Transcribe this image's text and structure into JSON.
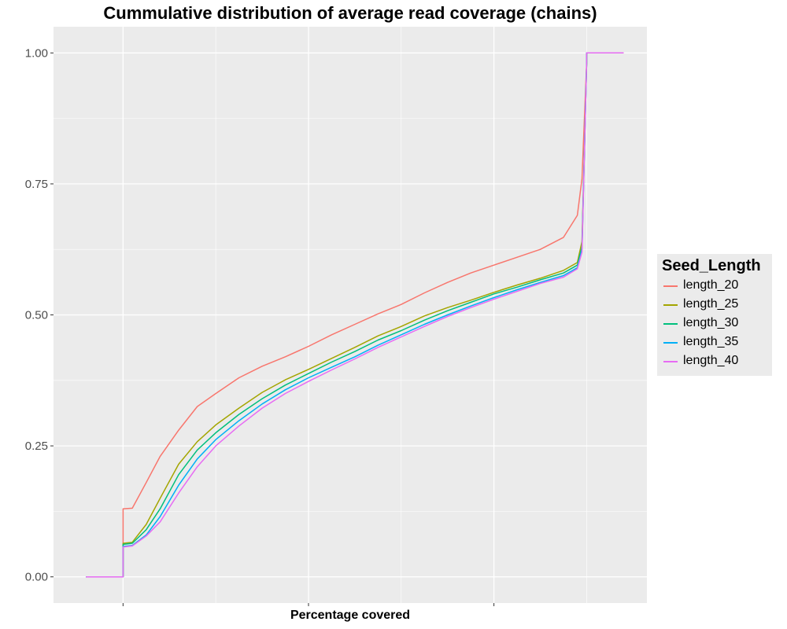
{
  "chart_data": {
    "type": "line",
    "title": "Cummulative distribution of average read coverage (chains)",
    "xlabel": "Percentage covered",
    "ylabel": "",
    "xlim": [
      -0.15,
      1.13
    ],
    "ylim": [
      -0.05,
      1.05
    ],
    "x_major_ticks": [
      0,
      0.4,
      0.8
    ],
    "x_minor_ticks": [
      0.2,
      0.6,
      1.0
    ],
    "x_tick_labels": [],
    "y_ticks": [
      0,
      0.25,
      0.5,
      0.75,
      1
    ],
    "y_tick_labels": [
      "0.00",
      "0.25",
      "0.50",
      "0.75",
      "1.00"
    ],
    "grid": true,
    "legend": {
      "title": "Seed_Length",
      "position": "right"
    },
    "series": [
      {
        "name": "length_20",
        "color": "#F8766D",
        "points": [
          [
            -0.08,
            0
          ],
          [
            0,
            0
          ],
          [
            0,
            0.13
          ],
          [
            0.02,
            0.131
          ],
          [
            0.05,
            0.18
          ],
          [
            0.08,
            0.23
          ],
          [
            0.12,
            0.28
          ],
          [
            0.16,
            0.325
          ],
          [
            0.2,
            0.35
          ],
          [
            0.25,
            0.38
          ],
          [
            0.3,
            0.402
          ],
          [
            0.35,
            0.42
          ],
          [
            0.4,
            0.44
          ],
          [
            0.45,
            0.462
          ],
          [
            0.5,
            0.482
          ],
          [
            0.55,
            0.502
          ],
          [
            0.6,
            0.52
          ],
          [
            0.65,
            0.542
          ],
          [
            0.7,
            0.562
          ],
          [
            0.75,
            0.58
          ],
          [
            0.8,
            0.595
          ],
          [
            0.85,
            0.61
          ],
          [
            0.9,
            0.625
          ],
          [
            0.95,
            0.648
          ],
          [
            0.98,
            0.69
          ],
          [
            0.99,
            0.76
          ],
          [
            1.0,
            0.98
          ],
          [
            1.0,
            1.0
          ],
          [
            1.08,
            1.0
          ]
        ]
      },
      {
        "name": "length_25",
        "color": "#A3A500",
        "points": [
          [
            -0.08,
            0
          ],
          [
            0,
            0
          ],
          [
            0,
            0.064
          ],
          [
            0.02,
            0.066
          ],
          [
            0.05,
            0.1
          ],
          [
            0.08,
            0.15
          ],
          [
            0.12,
            0.215
          ],
          [
            0.16,
            0.258
          ],
          [
            0.2,
            0.29
          ],
          [
            0.25,
            0.322
          ],
          [
            0.3,
            0.352
          ],
          [
            0.35,
            0.376
          ],
          [
            0.4,
            0.396
          ],
          [
            0.45,
            0.417
          ],
          [
            0.5,
            0.438
          ],
          [
            0.55,
            0.46
          ],
          [
            0.6,
            0.478
          ],
          [
            0.65,
            0.498
          ],
          [
            0.7,
            0.514
          ],
          [
            0.75,
            0.528
          ],
          [
            0.8,
            0.543
          ],
          [
            0.85,
            0.557
          ],
          [
            0.9,
            0.57
          ],
          [
            0.95,
            0.585
          ],
          [
            0.98,
            0.6
          ],
          [
            0.99,
            0.64
          ],
          [
            1.0,
            0.98
          ],
          [
            1.0,
            1.0
          ],
          [
            1.08,
            1.0
          ]
        ]
      },
      {
        "name": "length_30",
        "color": "#00BF7D",
        "points": [
          [
            -0.08,
            0
          ],
          [
            0,
            0
          ],
          [
            0,
            0.062
          ],
          [
            0.02,
            0.064
          ],
          [
            0.05,
            0.09
          ],
          [
            0.08,
            0.13
          ],
          [
            0.12,
            0.195
          ],
          [
            0.16,
            0.242
          ],
          [
            0.2,
            0.275
          ],
          [
            0.25,
            0.31
          ],
          [
            0.3,
            0.34
          ],
          [
            0.35,
            0.366
          ],
          [
            0.4,
            0.388
          ],
          [
            0.45,
            0.41
          ],
          [
            0.5,
            0.43
          ],
          [
            0.55,
            0.452
          ],
          [
            0.6,
            0.47
          ],
          [
            0.65,
            0.49
          ],
          [
            0.7,
            0.508
          ],
          [
            0.75,
            0.524
          ],
          [
            0.8,
            0.54
          ],
          [
            0.85,
            0.553
          ],
          [
            0.9,
            0.567
          ],
          [
            0.95,
            0.58
          ],
          [
            0.98,
            0.595
          ],
          [
            0.99,
            0.63
          ],
          [
            1.0,
            0.98
          ],
          [
            1.0,
            1.0
          ],
          [
            1.08,
            1.0
          ]
        ]
      },
      {
        "name": "length_35",
        "color": "#00B0F6",
        "points": [
          [
            -0.08,
            0
          ],
          [
            0,
            0
          ],
          [
            0,
            0.058
          ],
          [
            0.02,
            0.06
          ],
          [
            0.05,
            0.08
          ],
          [
            0.08,
            0.115
          ],
          [
            0.12,
            0.175
          ],
          [
            0.16,
            0.225
          ],
          [
            0.2,
            0.262
          ],
          [
            0.25,
            0.298
          ],
          [
            0.3,
            0.33
          ],
          [
            0.35,
            0.357
          ],
          [
            0.4,
            0.38
          ],
          [
            0.45,
            0.4
          ],
          [
            0.5,
            0.42
          ],
          [
            0.55,
            0.442
          ],
          [
            0.6,
            0.462
          ],
          [
            0.65,
            0.482
          ],
          [
            0.7,
            0.5
          ],
          [
            0.75,
            0.517
          ],
          [
            0.8,
            0.533
          ],
          [
            0.85,
            0.548
          ],
          [
            0.9,
            0.562
          ],
          [
            0.95,
            0.575
          ],
          [
            0.98,
            0.59
          ],
          [
            0.99,
            0.625
          ],
          [
            1.0,
            0.98
          ],
          [
            1.0,
            1.0
          ],
          [
            1.08,
            1.0
          ]
        ]
      },
      {
        "name": "length_40",
        "color": "#E76BF3",
        "points": [
          [
            -0.08,
            0
          ],
          [
            0,
            0
          ],
          [
            0,
            0.057
          ],
          [
            0.02,
            0.059
          ],
          [
            0.05,
            0.078
          ],
          [
            0.08,
            0.105
          ],
          [
            0.12,
            0.16
          ],
          [
            0.16,
            0.21
          ],
          [
            0.2,
            0.25
          ],
          [
            0.25,
            0.288
          ],
          [
            0.3,
            0.322
          ],
          [
            0.35,
            0.35
          ],
          [
            0.4,
            0.373
          ],
          [
            0.45,
            0.395
          ],
          [
            0.5,
            0.416
          ],
          [
            0.55,
            0.438
          ],
          [
            0.6,
            0.458
          ],
          [
            0.65,
            0.478
          ],
          [
            0.7,
            0.497
          ],
          [
            0.75,
            0.514
          ],
          [
            0.8,
            0.53
          ],
          [
            0.85,
            0.545
          ],
          [
            0.9,
            0.56
          ],
          [
            0.95,
            0.572
          ],
          [
            0.98,
            0.588
          ],
          [
            0.99,
            0.62
          ],
          [
            1.0,
            0.98
          ],
          [
            1.0,
            1.0
          ],
          [
            1.08,
            1.0
          ]
        ]
      }
    ]
  }
}
